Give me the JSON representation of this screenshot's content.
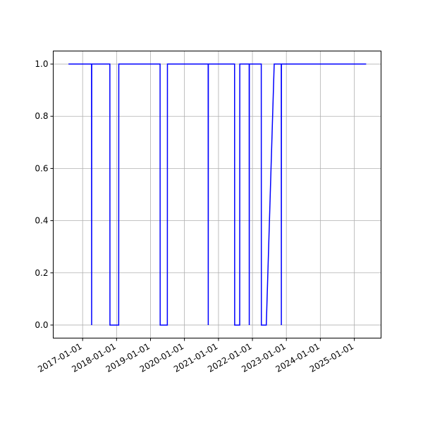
{
  "chart_data": {
    "type": "line",
    "x": [
      "2016-08-02",
      "2017-04-07",
      "2017-04-08",
      "2017-04-09",
      "2017-10-21",
      "2017-10-22",
      "2018-01-24",
      "2018-01-25",
      "2019-04-14",
      "2019-04-15",
      "2019-07-01",
      "2019-07-02",
      "2020-09-12",
      "2020-09-13",
      "2020-09-14",
      "2021-06-23",
      "2021-06-24",
      "2021-08-17",
      "2021-08-18",
      "2021-11-27",
      "2021-11-28",
      "2021-11-29",
      "2022-04-06",
      "2022-04-07",
      "2022-05-30",
      "2022-08-23",
      "2022-11-07",
      "2022-11-08",
      "2022-11-09",
      "2025-05-08"
    ],
    "series": [
      {
        "color": "#0000ff",
        "values": [
          1,
          1,
          0,
          1,
          1,
          0,
          0,
          1,
          1,
          0,
          0,
          1,
          1,
          0,
          1,
          1,
          0,
          0,
          1,
          1,
          0,
          1,
          1,
          0,
          0,
          1,
          1,
          0,
          1,
          1
        ]
      }
    ],
    "xlim": [
      "2016-02-20",
      "2025-10-15"
    ],
    "xticks": [
      "2017-01-01",
      "2018-01-01",
      "2019-01-01",
      "2020-01-01",
      "2021-01-01",
      "2022-01-01",
      "2023-01-01",
      "2024-01-01",
      "2025-01-01"
    ],
    "ylim": [
      -0.05,
      1.05
    ],
    "yticks": [
      {
        "value": 0,
        "label": "0.0"
      },
      {
        "value": 0.2,
        "label": "0.2"
      },
      {
        "value": 0.4,
        "label": "0.4"
      },
      {
        "value": 0.6,
        "label": "0.6"
      },
      {
        "value": 0.8,
        "label": "0.8"
      },
      {
        "value": 1,
        "label": "1.0"
      }
    ],
    "grid": true
  }
}
